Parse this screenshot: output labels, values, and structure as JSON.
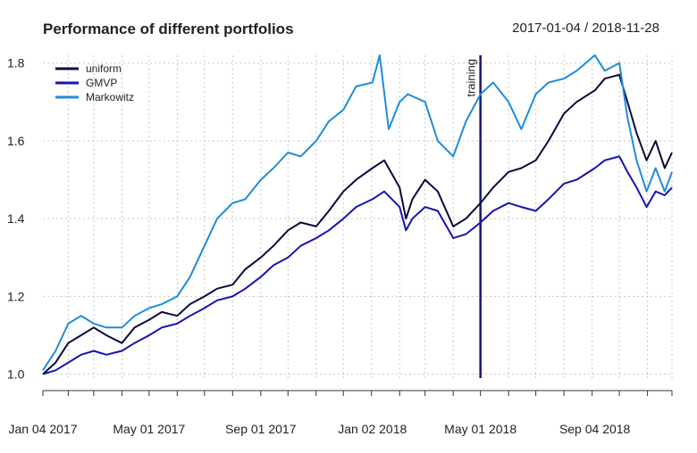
{
  "chart_data": {
    "type": "line",
    "title": "Performance of different portfolios",
    "date_range": "2017-01-04 / 2018-11-28",
    "x_tick_labels": [
      "Jan 04 2017",
      "May 01 2017",
      "Sep 01 2017",
      "Jan 02 2018",
      "May 01 2018",
      "Sep 04 2018"
    ],
    "x_tick_dates": [
      "2017-01-04",
      "2017-05-01",
      "2017-09-01",
      "2018-01-02",
      "2018-05-01",
      "2018-09-04"
    ],
    "x_range": [
      "2017-01-04",
      "2018-11-28"
    ],
    "y_tick_labels": [
      "1.0",
      "1.2",
      "1.4",
      "1.6",
      "1.8"
    ],
    "ylim": [
      0.99,
      1.82
    ],
    "grid": true,
    "legend_position": "top-left",
    "annotations": [
      {
        "label": "training",
        "x": "2018-05-01",
        "orientation": "vertical-line"
      }
    ],
    "series": [
      {
        "name": "uniform",
        "color": "#0a0a3c",
        "points": [
          [
            "2017-01-04",
            1.0
          ],
          [
            "2017-01-18",
            1.03
          ],
          [
            "2017-02-01",
            1.08
          ],
          [
            "2017-02-15",
            1.1
          ],
          [
            "2017-03-01",
            1.12
          ],
          [
            "2017-03-15",
            1.1
          ],
          [
            "2017-04-01",
            1.08
          ],
          [
            "2017-04-15",
            1.12
          ],
          [
            "2017-05-01",
            1.14
          ],
          [
            "2017-05-15",
            1.16
          ],
          [
            "2017-06-01",
            1.15
          ],
          [
            "2017-06-15",
            1.18
          ],
          [
            "2017-07-01",
            1.2
          ],
          [
            "2017-07-15",
            1.22
          ],
          [
            "2017-08-01",
            1.23
          ],
          [
            "2017-08-15",
            1.27
          ],
          [
            "2017-09-01",
            1.3
          ],
          [
            "2017-09-15",
            1.33
          ],
          [
            "2017-10-01",
            1.37
          ],
          [
            "2017-10-15",
            1.39
          ],
          [
            "2017-11-01",
            1.38
          ],
          [
            "2017-11-15",
            1.42
          ],
          [
            "2017-12-01",
            1.47
          ],
          [
            "2017-12-15",
            1.5
          ],
          [
            "2018-01-02",
            1.53
          ],
          [
            "2018-01-15",
            1.55
          ],
          [
            "2018-02-01",
            1.48
          ],
          [
            "2018-02-08",
            1.4
          ],
          [
            "2018-02-15",
            1.45
          ],
          [
            "2018-03-01",
            1.5
          ],
          [
            "2018-03-15",
            1.47
          ],
          [
            "2018-04-01",
            1.38
          ],
          [
            "2018-04-15",
            1.4
          ],
          [
            "2018-05-01",
            1.44
          ],
          [
            "2018-05-15",
            1.48
          ],
          [
            "2018-06-01",
            1.52
          ],
          [
            "2018-06-15",
            1.53
          ],
          [
            "2018-07-01",
            1.55
          ],
          [
            "2018-07-15",
            1.6
          ],
          [
            "2018-08-01",
            1.67
          ],
          [
            "2018-08-15",
            1.7
          ],
          [
            "2018-09-04",
            1.73
          ],
          [
            "2018-09-15",
            1.76
          ],
          [
            "2018-10-01",
            1.77
          ],
          [
            "2018-10-10",
            1.7
          ],
          [
            "2018-10-20",
            1.62
          ],
          [
            "2018-10-31",
            1.55
          ],
          [
            "2018-11-10",
            1.6
          ],
          [
            "2018-11-20",
            1.53
          ],
          [
            "2018-11-28",
            1.57
          ]
        ]
      },
      {
        "name": "GMVP",
        "color": "#1414b4",
        "points": [
          [
            "2017-01-04",
            1.0
          ],
          [
            "2017-01-18",
            1.01
          ],
          [
            "2017-02-01",
            1.03
          ],
          [
            "2017-02-15",
            1.05
          ],
          [
            "2017-03-01",
            1.06
          ],
          [
            "2017-03-15",
            1.05
          ],
          [
            "2017-04-01",
            1.06
          ],
          [
            "2017-04-15",
            1.08
          ],
          [
            "2017-05-01",
            1.1
          ],
          [
            "2017-05-15",
            1.12
          ],
          [
            "2017-06-01",
            1.13
          ],
          [
            "2017-06-15",
            1.15
          ],
          [
            "2017-07-01",
            1.17
          ],
          [
            "2017-07-15",
            1.19
          ],
          [
            "2017-08-01",
            1.2
          ],
          [
            "2017-08-15",
            1.22
          ],
          [
            "2017-09-01",
            1.25
          ],
          [
            "2017-09-15",
            1.28
          ],
          [
            "2017-10-01",
            1.3
          ],
          [
            "2017-10-15",
            1.33
          ],
          [
            "2017-11-01",
            1.35
          ],
          [
            "2017-11-15",
            1.37
          ],
          [
            "2017-12-01",
            1.4
          ],
          [
            "2017-12-15",
            1.43
          ],
          [
            "2018-01-02",
            1.45
          ],
          [
            "2018-01-15",
            1.47
          ],
          [
            "2018-02-01",
            1.43
          ],
          [
            "2018-02-08",
            1.37
          ],
          [
            "2018-02-15",
            1.4
          ],
          [
            "2018-03-01",
            1.43
          ],
          [
            "2018-03-15",
            1.42
          ],
          [
            "2018-04-01",
            1.35
          ],
          [
            "2018-04-15",
            1.36
          ],
          [
            "2018-05-01",
            1.39
          ],
          [
            "2018-05-15",
            1.42
          ],
          [
            "2018-06-01",
            1.44
          ],
          [
            "2018-06-15",
            1.43
          ],
          [
            "2018-07-01",
            1.42
          ],
          [
            "2018-07-15",
            1.45
          ],
          [
            "2018-08-01",
            1.49
          ],
          [
            "2018-08-15",
            1.5
          ],
          [
            "2018-09-04",
            1.53
          ],
          [
            "2018-09-15",
            1.55
          ],
          [
            "2018-10-01",
            1.56
          ],
          [
            "2018-10-10",
            1.52
          ],
          [
            "2018-10-20",
            1.48
          ],
          [
            "2018-10-31",
            1.43
          ],
          [
            "2018-11-10",
            1.47
          ],
          [
            "2018-11-20",
            1.46
          ],
          [
            "2018-11-28",
            1.48
          ]
        ]
      },
      {
        "name": "Markowitz",
        "color": "#1e8cdc",
        "points": [
          [
            "2017-01-04",
            1.01
          ],
          [
            "2017-01-18",
            1.06
          ],
          [
            "2017-02-01",
            1.13
          ],
          [
            "2017-02-15",
            1.15
          ],
          [
            "2017-03-01",
            1.13
          ],
          [
            "2017-03-15",
            1.12
          ],
          [
            "2017-04-01",
            1.12
          ],
          [
            "2017-04-15",
            1.15
          ],
          [
            "2017-05-01",
            1.17
          ],
          [
            "2017-05-15",
            1.18
          ],
          [
            "2017-06-01",
            1.2
          ],
          [
            "2017-06-15",
            1.25
          ],
          [
            "2017-07-01",
            1.33
          ],
          [
            "2017-07-15",
            1.4
          ],
          [
            "2017-08-01",
            1.44
          ],
          [
            "2017-08-15",
            1.45
          ],
          [
            "2017-09-01",
            1.5
          ],
          [
            "2017-09-15",
            1.53
          ],
          [
            "2017-10-01",
            1.57
          ],
          [
            "2017-10-15",
            1.56
          ],
          [
            "2017-11-01",
            1.6
          ],
          [
            "2017-11-15",
            1.65
          ],
          [
            "2017-12-01",
            1.68
          ],
          [
            "2017-12-15",
            1.74
          ],
          [
            "2018-01-02",
            1.75
          ],
          [
            "2018-01-10",
            1.82
          ],
          [
            "2018-01-20",
            1.63
          ],
          [
            "2018-02-01",
            1.7
          ],
          [
            "2018-02-10",
            1.72
          ],
          [
            "2018-03-01",
            1.7
          ],
          [
            "2018-03-15",
            1.6
          ],
          [
            "2018-04-01",
            1.56
          ],
          [
            "2018-04-15",
            1.65
          ],
          [
            "2018-05-01",
            1.72
          ],
          [
            "2018-05-15",
            1.75
          ],
          [
            "2018-06-01",
            1.7
          ],
          [
            "2018-06-15",
            1.63
          ],
          [
            "2018-07-01",
            1.72
          ],
          [
            "2018-07-15",
            1.75
          ],
          [
            "2018-08-01",
            1.76
          ],
          [
            "2018-08-15",
            1.78
          ],
          [
            "2018-09-04",
            1.82
          ],
          [
            "2018-09-15",
            1.78
          ],
          [
            "2018-10-01",
            1.8
          ],
          [
            "2018-10-10",
            1.66
          ],
          [
            "2018-10-20",
            1.55
          ],
          [
            "2018-10-31",
            1.47
          ],
          [
            "2018-11-10",
            1.53
          ],
          [
            "2018-11-20",
            1.47
          ],
          [
            "2018-11-28",
            1.52
          ]
        ]
      }
    ]
  }
}
